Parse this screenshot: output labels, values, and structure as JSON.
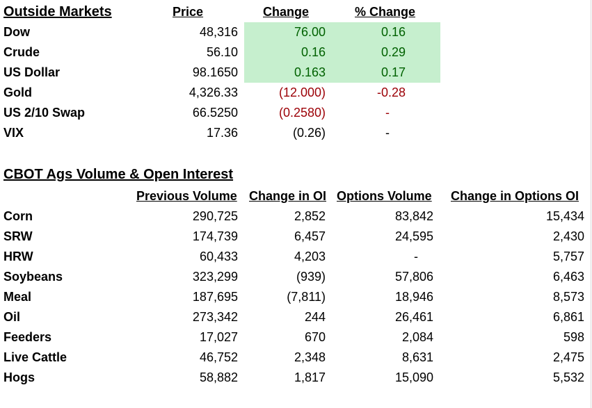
{
  "outside_markets": {
    "title": "Outside Markets",
    "headers": {
      "price": "Price",
      "change": "Change",
      "pct_change": "% Change"
    },
    "rows": [
      {
        "name": "Dow",
        "price": "48,316",
        "change": "76.00",
        "pct": "0.16",
        "tone": "pos"
      },
      {
        "name": "Crude",
        "price": "56.10",
        "change": "0.16",
        "pct": "0.29",
        "tone": "pos"
      },
      {
        "name": "US Dollar",
        "price": "98.1650",
        "change": "0.163",
        "pct": "0.17",
        "tone": "pos"
      },
      {
        "name": "Gold",
        "price": "4,326.33",
        "change": "(12.000)",
        "pct": "-0.28",
        "tone": "neg"
      },
      {
        "name": "US 2/10 Swap",
        "price": "66.5250",
        "change": "(0.2580)",
        "pct": "-",
        "tone": "neg"
      },
      {
        "name": "VIX",
        "price": "17.36",
        "change": "(0.26)",
        "pct": "-",
        "tone": "neu"
      }
    ],
    "colors": {
      "highlight_bg": "#c6efce",
      "positive": "#006100",
      "negative": "#9c0006"
    }
  },
  "volume_oi": {
    "title": "CBOT Ags Volume & Open Interest",
    "headers": {
      "previous_volume": "Previous Volume",
      "change_in_oi": "Change in OI",
      "options_volume": "Options Volume",
      "change_in_options_oi": "Change in Options OI"
    },
    "rows": [
      {
        "name": "Corn",
        "prev": "290,725",
        "chg": "2,852",
        "opt": "83,842",
        "chgopt": "15,434"
      },
      {
        "name": "SRW",
        "prev": "174,739",
        "chg": "6,457",
        "opt": "24,595",
        "chgopt": "2,430"
      },
      {
        "name": "HRW",
        "prev": "60,433",
        "chg": "4,203",
        "opt": "-",
        "chgopt": "5,757"
      },
      {
        "name": "Soybeans",
        "prev": "323,299",
        "chg": "(939)",
        "opt": "57,806",
        "chgopt": "6,463"
      },
      {
        "name": "Meal",
        "prev": "187,695",
        "chg": "(7,811)",
        "opt": "18,946",
        "chgopt": "8,573"
      },
      {
        "name": "Oil",
        "prev": "273,342",
        "chg": "244",
        "opt": "26,461",
        "chgopt": "6,861"
      },
      {
        "name": "Feeders",
        "prev": "17,027",
        "chg": "670",
        "opt": "2,084",
        "chgopt": "598"
      },
      {
        "name": "Live Cattle",
        "prev": "46,752",
        "chg": "2,348",
        "opt": "8,631",
        "chgopt": "2,475"
      },
      {
        "name": "Hogs",
        "prev": "58,882",
        "chg": "1,817",
        "opt": "15,090",
        "chgopt": "5,532"
      }
    ]
  }
}
